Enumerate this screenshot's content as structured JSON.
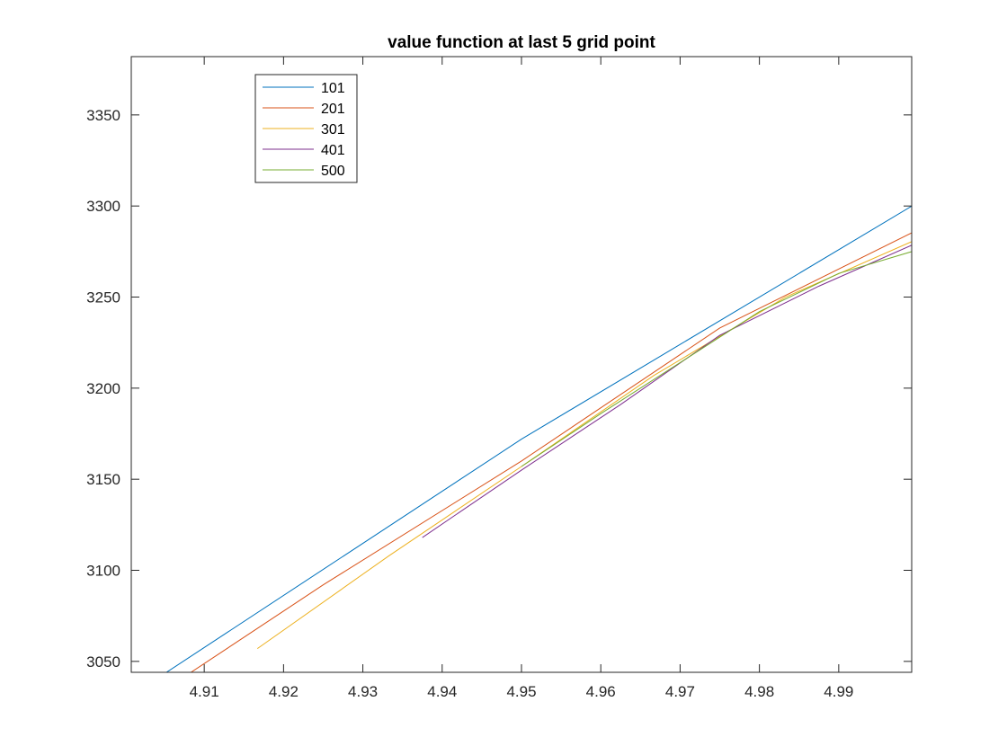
{
  "chart_data": {
    "type": "line",
    "title": "value function at last 5 grid point",
    "xlabel": "",
    "ylabel": "",
    "xlim": [
      4.9008,
      4.9992
    ],
    "ylim": [
      3044,
      3382
    ],
    "xticks": [
      4.91,
      4.92,
      4.93,
      4.94,
      4.95,
      4.96,
      4.97,
      4.98,
      4.99
    ],
    "xtick_labels": [
      "4.91",
      "4.92",
      "4.93",
      "4.94",
      "4.95",
      "4.96",
      "4.97",
      "4.98",
      "4.99"
    ],
    "yticks": [
      3050,
      3100,
      3150,
      3200,
      3250,
      3300,
      3350
    ],
    "ytick_labels": [
      "3050",
      "3100",
      "3150",
      "3200",
      "3250",
      "3300",
      "3350"
    ],
    "grid": false,
    "box": true,
    "legend_position": "top-left",
    "series": [
      {
        "name": "101",
        "color": "#0072BD",
        "x": [
          4.9,
          4.95,
          5.0
        ],
        "y": [
          3029,
          3172,
          3302
        ]
      },
      {
        "name": "201",
        "color": "#D95319",
        "x": [
          4.9,
          4.925,
          4.95,
          4.975,
          5.0
        ],
        "y": [
          3020,
          3092,
          3160,
          3233,
          3287
        ]
      },
      {
        "name": "301",
        "color": "#EDB120",
        "x": [
          4.9167,
          4.9333,
          4.95,
          4.9667,
          4.9833,
          5.0
        ],
        "y": [
          3057,
          3108,
          3157,
          3207,
          3250,
          3282
        ]
      },
      {
        "name": "401",
        "color": "#7E2F8E",
        "x": [
          4.9375,
          4.95,
          4.9625,
          4.975,
          4.9875,
          5.0
        ],
        "y": [
          3118,
          3155,
          3191,
          3229,
          3256,
          3280
        ]
      },
      {
        "name": "500",
        "color": "#77AC30",
        "x": [
          4.95,
          4.96,
          4.97,
          4.98,
          4.99,
          5.0
        ],
        "y": [
          3157,
          3186,
          3214,
          3242,
          3263,
          3276
        ]
      }
    ]
  }
}
